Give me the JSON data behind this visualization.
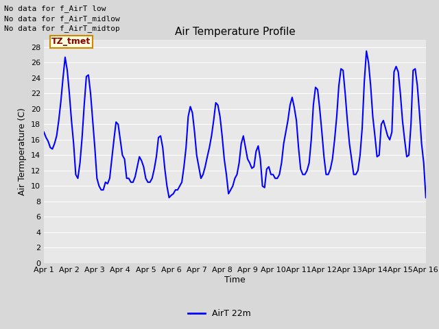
{
  "title": "Air Temperature Profile",
  "xlabel": "Time",
  "ylabel": "Air Termperature (C)",
  "line_color": "blue",
  "line_width": 1.5,
  "background_color": "#d8d8d8",
  "plot_bg_color": "#e8e8e8",
  "ylim": [
    0,
    29
  ],
  "yticks": [
    0,
    2,
    4,
    6,
    8,
    10,
    12,
    14,
    16,
    18,
    20,
    22,
    24,
    26,
    28
  ],
  "xtick_labels": [
    "Apr 1",
    "Apr 2",
    "Apr 3",
    "Apr 4",
    "Apr 5",
    "Apr 6",
    "Apr 7",
    "Apr 8",
    "Apr 9",
    "Apr 10",
    "Apr 11",
    "Apr 12",
    "Apr 13",
    "Apr 14",
    "Apr 15",
    "Apr 16"
  ],
  "legend_label": "AirT 22m",
  "annotations": [
    "No data for f_AirT low",
    "No data for f_AirT_midlow",
    "No data for f_AirT_midtop"
  ],
  "tz_label": "TZ_tmet",
  "x": [
    0.0,
    0.083,
    0.167,
    0.25,
    0.333,
    0.417,
    0.5,
    0.583,
    0.667,
    0.75,
    0.833,
    0.917,
    1.0,
    1.083,
    1.167,
    1.25,
    1.333,
    1.417,
    1.5,
    1.583,
    1.667,
    1.75,
    1.833,
    1.917,
    2.0,
    2.083,
    2.167,
    2.25,
    2.333,
    2.417,
    2.5,
    2.583,
    2.667,
    2.75,
    2.833,
    2.917,
    3.0,
    3.083,
    3.167,
    3.25,
    3.333,
    3.417,
    3.5,
    3.583,
    3.667,
    3.75,
    3.833,
    3.917,
    4.0,
    4.083,
    4.167,
    4.25,
    4.333,
    4.417,
    4.5,
    4.583,
    4.667,
    4.75,
    4.833,
    4.917,
    5.0,
    5.083,
    5.167,
    5.25,
    5.333,
    5.417,
    5.5,
    5.583,
    5.667,
    5.75,
    5.833,
    5.917,
    6.0,
    6.083,
    6.167,
    6.25,
    6.333,
    6.417,
    6.5,
    6.583,
    6.667,
    6.75,
    6.833,
    6.917,
    7.0,
    7.083,
    7.167,
    7.25,
    7.333,
    7.417,
    7.5,
    7.583,
    7.667,
    7.75,
    7.833,
    7.917,
    8.0,
    8.083,
    8.167,
    8.25,
    8.333,
    8.417,
    8.5,
    8.583,
    8.667,
    8.75,
    8.833,
    8.917,
    9.0,
    9.083,
    9.167,
    9.25,
    9.333,
    9.417,
    9.5,
    9.583,
    9.667,
    9.75,
    9.833,
    9.917,
    10.0,
    10.083,
    10.167,
    10.25,
    10.333,
    10.417,
    10.5,
    10.583,
    10.667,
    10.75,
    10.833,
    10.917,
    11.0,
    11.083,
    11.167,
    11.25,
    11.333,
    11.417,
    11.5,
    11.583,
    11.667,
    11.75,
    11.833,
    11.917,
    12.0,
    12.083,
    12.167,
    12.25,
    12.333,
    12.417,
    12.5,
    12.583,
    12.667,
    12.75,
    12.833,
    12.917,
    13.0,
    13.083,
    13.167,
    13.25,
    13.333,
    13.417,
    13.5,
    13.583,
    13.667,
    13.75,
    13.833,
    13.917,
    14.0,
    14.083,
    14.167,
    14.25,
    14.333,
    14.417,
    14.5,
    14.583,
    14.667,
    14.75,
    14.833,
    14.917,
    15.0
  ],
  "y": [
    17.0,
    16.3,
    15.8,
    15.0,
    14.8,
    15.5,
    16.5,
    18.5,
    21.0,
    24.0,
    26.7,
    25.0,
    22.0,
    18.5,
    15.5,
    11.5,
    11.0,
    13.0,
    16.3,
    20.5,
    24.2,
    24.4,
    22.0,
    18.5,
    15.0,
    11.0,
    10.0,
    9.5,
    9.5,
    10.5,
    10.3,
    11.0,
    13.5,
    16.0,
    18.3,
    18.0,
    16.0,
    14.0,
    13.5,
    11.0,
    11.0,
    10.5,
    10.5,
    11.2,
    12.5,
    13.8,
    13.3,
    12.5,
    11.0,
    10.5,
    10.5,
    11.0,
    12.2,
    13.8,
    16.3,
    16.5,
    15.0,
    12.2,
    10.0,
    8.5,
    8.8,
    9.0,
    9.5,
    9.5,
    10.0,
    10.5,
    12.5,
    15.0,
    19.0,
    20.3,
    19.5,
    17.0,
    14.0,
    12.5,
    11.0,
    11.5,
    12.5,
    13.8,
    15.0,
    16.5,
    18.5,
    20.8,
    20.5,
    19.0,
    16.5,
    13.5,
    11.5,
    9.0,
    9.5,
    10.0,
    11.0,
    11.5,
    13.0,
    15.5,
    16.5,
    15.0,
    13.5,
    13.0,
    12.3,
    12.5,
    14.5,
    15.2,
    13.5,
    10.0,
    9.8,
    12.2,
    12.5,
    11.5,
    11.5,
    11.0,
    11.0,
    11.5,
    13.0,
    15.5,
    17.0,
    18.5,
    20.5,
    21.5,
    20.2,
    18.5,
    15.0,
    12.2,
    11.5,
    11.5,
    12.0,
    13.0,
    16.0,
    20.5,
    22.8,
    22.5,
    20.0,
    17.0,
    13.8,
    11.5,
    11.5,
    12.2,
    13.5,
    16.0,
    19.0,
    23.0,
    25.2,
    25.0,
    22.0,
    18.5,
    15.5,
    13.5,
    11.5,
    11.5,
    12.0,
    14.0,
    17.5,
    23.5,
    27.5,
    26.0,
    23.0,
    19.0,
    16.5,
    13.8,
    14.0,
    18.0,
    18.5,
    17.5,
    16.5,
    16.0,
    17.0,
    24.8,
    25.5,
    24.8,
    22.0,
    18.5,
    16.0,
    13.8,
    14.0,
    18.0,
    25.0,
    25.2,
    23.0,
    19.5,
    15.5,
    13.0,
    8.5
  ]
}
